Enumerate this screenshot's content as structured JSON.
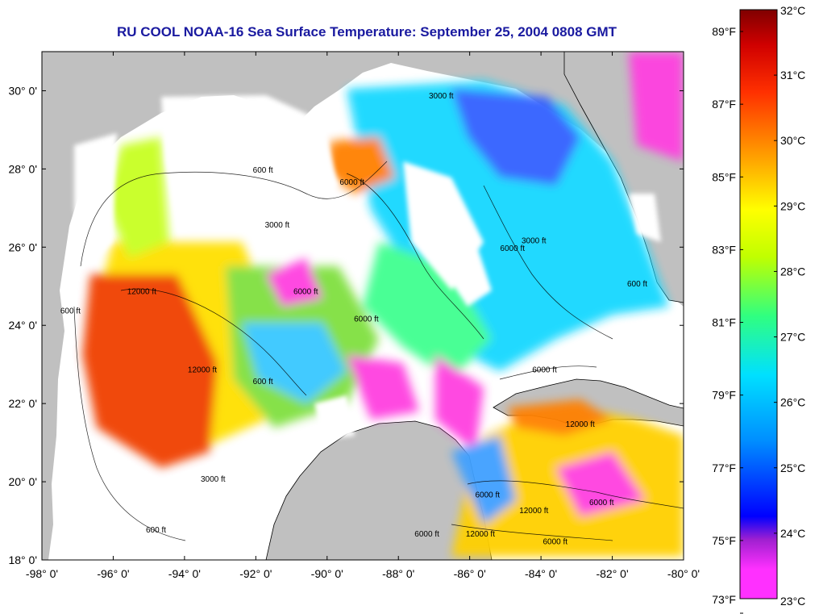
{
  "title": "RU COOL  NOAA-16  Sea Surface Temperature:  September 25, 2004 0808 GMT",
  "map": {
    "lon_range": [
      -98,
      -80
    ],
    "lat_range": [
      18,
      31
    ],
    "lon_ticks": [
      "-98° 0'",
      "-96° 0'",
      "-94° 0'",
      "-92° 0'",
      "-90° 0'",
      "-88° 0'",
      "-86° 0'",
      "-84° 0'",
      "-82° 0'",
      "-80° 0'"
    ],
    "lon_values": [
      -98,
      -96,
      -94,
      -92,
      -90,
      -88,
      -86,
      -84,
      -82,
      -80
    ],
    "lat_ticks": [
      "18° 0'",
      "20° 0'",
      "22° 0'",
      "24° 0'",
      "26° 0'",
      "28° 0'",
      "30° 0'"
    ],
    "lat_values": [
      18,
      20,
      22,
      24,
      26,
      28,
      30
    ],
    "land_color": "#c0c0c0",
    "cloud_color": "#ffffff",
    "contour_labels": [
      {
        "text": "600 ft",
        "lon": -91.8,
        "lat": 27.9
      },
      {
        "text": "3000 ft",
        "lon": -86.8,
        "lat": 29.8
      },
      {
        "text": "6000 ft",
        "lon": -89.3,
        "lat": 27.6
      },
      {
        "text": "3000 ft",
        "lon": -91.4,
        "lat": 26.5
      },
      {
        "text": "600 ft",
        "lon": -97.2,
        "lat": 24.3
      },
      {
        "text": "12000 ft",
        "lon": -95.2,
        "lat": 24.8
      },
      {
        "text": "12000 ft",
        "lon": -93.5,
        "lat": 22.8
      },
      {
        "text": "600 ft",
        "lon": -91.8,
        "lat": 22.5
      },
      {
        "text": "6000 ft",
        "lon": -90.6,
        "lat": 24.8
      },
      {
        "text": "6000 ft",
        "lon": -88.9,
        "lat": 24.1
      },
      {
        "text": "6000 ft",
        "lon": -84.8,
        "lat": 25.9
      },
      {
        "text": "3000 ft",
        "lon": -84.2,
        "lat": 26.1
      },
      {
        "text": "600 ft",
        "lon": -81.3,
        "lat": 25.0
      },
      {
        "text": "6000 ft",
        "lon": -83.9,
        "lat": 22.8
      },
      {
        "text": "12000 ft",
        "lon": -82.9,
        "lat": 21.4
      },
      {
        "text": "3000 ft",
        "lon": -93.2,
        "lat": 20.0
      },
      {
        "text": "600 ft",
        "lon": -94.8,
        "lat": 18.7
      },
      {
        "text": "6000 ft",
        "lon": -85.5,
        "lat": 19.6
      },
      {
        "text": "12000 ft",
        "lon": -84.2,
        "lat": 19.2
      },
      {
        "text": "6000 ft",
        "lon": -82.3,
        "lat": 19.4
      },
      {
        "text": "12000 ft",
        "lon": -85.7,
        "lat": 18.6
      },
      {
        "text": "6000 ft",
        "lon": -83.6,
        "lat": 18.4
      },
      {
        "text": "6000 ft",
        "lon": -87.2,
        "lat": 18.6
      }
    ]
  },
  "colorbar": {
    "celsius_labels": [
      "32°C",
      "31°C",
      "30°C",
      "29°C",
      "28°C",
      "27°C",
      "26°C",
      "25°C",
      "24°C",
      "23°C"
    ],
    "celsius_values": [
      32,
      31,
      30,
      29,
      28,
      27,
      26,
      25,
      24,
      23
    ],
    "fahrenheit_labels": [
      "89°F",
      "87°F",
      "85°F",
      "83°F",
      "81°F",
      "79°F",
      "77°F",
      "75°F",
      "73°F"
    ],
    "fahrenheit_values": [
      89,
      87,
      85,
      83,
      81,
      79,
      77,
      75,
      73
    ],
    "range_c": [
      23,
      32
    ],
    "stops": [
      "#ff30ff",
      "#a020d0",
      "#0000ff",
      "#0090ff",
      "#00e0ff",
      "#30ff80",
      "#c0ff00",
      "#ffff00",
      "#ffa000",
      "#ff3000",
      "#d00000",
      "#800000"
    ]
  }
}
